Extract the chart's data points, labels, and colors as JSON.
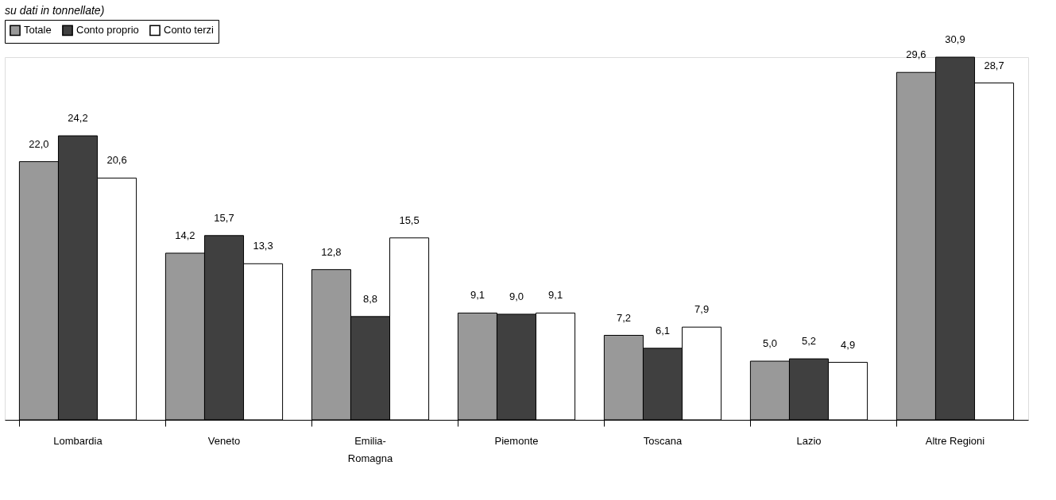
{
  "chart_data": {
    "type": "bar",
    "subtitle": "su dati in tonnellate)",
    "categories": [
      "Lombardia",
      "Veneto",
      "Emilia-Romagna",
      "Piemonte",
      "Toscana",
      "Lazio",
      "Altre Regioni"
    ],
    "series": [
      {
        "name": "Totale",
        "color": "#999999",
        "values": [
          22.0,
          14.2,
          12.8,
          9.1,
          7.2,
          5.0,
          29.6
        ],
        "value_labels": [
          "22,0",
          "14,2",
          "12,8",
          "9,1",
          "7,2",
          "5,0",
          "29,6"
        ]
      },
      {
        "name": "Conto proprio",
        "color": "#404040",
        "values": [
          24.2,
          15.7,
          8.8,
          9.0,
          6.1,
          5.2,
          30.9
        ],
        "value_labels": [
          "24,2",
          "15,7",
          "8,8",
          "9,0",
          "6,1",
          "5,2",
          "30,9"
        ]
      },
      {
        "name": "Conto terzi",
        "color": "#ffffff",
        "values": [
          20.6,
          13.3,
          15.5,
          9.1,
          7.9,
          4.9,
          28.7
        ],
        "value_labels": [
          "20,6",
          "13,3",
          "15,5",
          "9,1",
          "7,9",
          "4,9",
          "28,7"
        ]
      }
    ],
    "legend": "top",
    "grid": false
  }
}
